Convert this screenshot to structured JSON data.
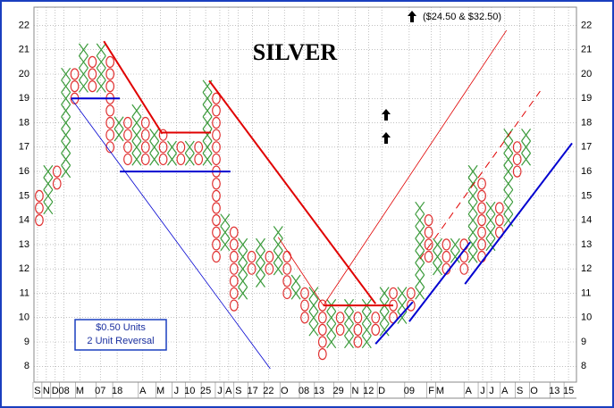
{
  "chart_data": {
    "type": "point_and_figure",
    "title": "SILVER",
    "annotation": "($24.50 & $32.50)",
    "box_size": 0.5,
    "box_label": "$0.50 Units",
    "reversal_label": "2 Unit Reversal",
    "x_color": "#3a9a3a",
    "o_color": "#e03030",
    "grid": true,
    "ylim": [
      7.35,
      22.75
    ],
    "yticks": [
      8,
      9,
      10,
      11,
      12,
      13,
      14,
      15,
      16,
      17,
      18,
      19,
      20,
      21,
      22
    ],
    "xlim": [
      -0.6,
      60.7
    ],
    "xticks": [
      {
        "value": -0.2,
        "label": "S"
      },
      {
        "value": 0.8,
        "label": "N"
      },
      {
        "value": 1.8,
        "label": "D"
      },
      {
        "value": 2.8,
        "label": "08"
      },
      {
        "value": 4.6,
        "label": "M"
      },
      {
        "value": 6.9,
        "label": "07"
      },
      {
        "value": 8.8,
        "label": "18"
      },
      {
        "value": 11.7,
        "label": "A"
      },
      {
        "value": 13.7,
        "label": "M"
      },
      {
        "value": 15.5,
        "label": "J"
      },
      {
        "value": 17,
        "label": "10"
      },
      {
        "value": 18.8,
        "label": "25"
      },
      {
        "value": 20.4,
        "label": "J"
      },
      {
        "value": 21.4,
        "label": "A"
      },
      {
        "value": 22.5,
        "label": "S"
      },
      {
        "value": 24.1,
        "label": "17"
      },
      {
        "value": 25.9,
        "label": "22"
      },
      {
        "value": 27.7,
        "label": "O"
      },
      {
        "value": 29.9,
        "label": "08"
      },
      {
        "value": 31.6,
        "label": "13"
      },
      {
        "value": 33.8,
        "label": "29"
      },
      {
        "value": 35.7,
        "label": "N"
      },
      {
        "value": 37.2,
        "label": "12"
      },
      {
        "value": 38.7,
        "label": "D"
      },
      {
        "value": 41.8,
        "label": "09"
      },
      {
        "value": 44.3,
        "label": "F"
      },
      {
        "value": 45.3,
        "label": "M"
      },
      {
        "value": 48.5,
        "label": "A"
      },
      {
        "value": 50.1,
        "label": "J"
      },
      {
        "value": 51.1,
        "label": "J"
      },
      {
        "value": 52.6,
        "label": "A"
      },
      {
        "value": 54.3,
        "label": "S"
      },
      {
        "value": 55.9,
        "label": "O"
      },
      {
        "value": 58.2,
        "label": "13"
      },
      {
        "value": 59.8,
        "label": "15"
      }
    ],
    "columns": [
      {
        "kind": "O",
        "low": 14,
        "high": 15
      },
      {
        "kind": "X",
        "low": 14.5,
        "high": 16
      },
      {
        "kind": "O",
        "low": 15.5,
        "high": 16
      },
      {
        "kind": "X",
        "low": 16,
        "high": 20
      },
      {
        "kind": "O",
        "low": 19,
        "high": 20
      },
      {
        "kind": "X",
        "low": 19.5,
        "high": 21
      },
      {
        "kind": "O",
        "low": 19.5,
        "high": 20.5
      },
      {
        "kind": "X",
        "low": 19.5,
        "high": 21
      },
      {
        "kind": "O",
        "low": 17,
        "high": 20.5
      },
      {
        "kind": "X",
        "low": 17.5,
        "high": 18
      },
      {
        "kind": "O",
        "low": 16.5,
        "high": 18
      },
      {
        "kind": "X",
        "low": 16.5,
        "high": 18.5
      },
      {
        "kind": "O",
        "low": 16.5,
        "high": 18
      },
      {
        "kind": "X",
        "low": 16.5,
        "high": 17.5
      },
      {
        "kind": "O",
        "low": 16.5,
        "high": 17.5
      },
      {
        "kind": "X",
        "low": 16.5,
        "high": 17
      },
      {
        "kind": "O",
        "low": 16.5,
        "high": 17
      },
      {
        "kind": "X",
        "low": 16.5,
        "high": 17
      },
      {
        "kind": "O",
        "low": 16.5,
        "high": 17
      },
      {
        "kind": "X",
        "low": 16.5,
        "high": 19.5
      },
      {
        "kind": "O",
        "low": 12.5,
        "high": 19
      },
      {
        "kind": "X",
        "low": 13,
        "high": 14
      },
      {
        "kind": "O",
        "low": 10.5,
        "high": 13.5
      },
      {
        "kind": "X",
        "low": 11,
        "high": 13
      },
      {
        "kind": "O",
        "low": 12,
        "high": 12.5
      },
      {
        "kind": "X",
        "low": 11.5,
        "high": 13
      },
      {
        "kind": "O",
        "low": 12,
        "high": 12.5
      },
      {
        "kind": "X",
        "low": 12,
        "high": 13.5
      },
      {
        "kind": "O",
        "low": 11,
        "high": 12.5
      },
      {
        "kind": "X",
        "low": 11,
        "high": 11.5
      },
      {
        "kind": "O",
        "low": 10,
        "high": 11
      },
      {
        "kind": "X",
        "low": 9.5,
        "high": 11
      },
      {
        "kind": "O",
        "low": 8.5,
        "high": 10.5
      },
      {
        "kind": "X",
        "low": 9,
        "high": 10.5
      },
      {
        "kind": "O",
        "low": 9.5,
        "high": 10
      },
      {
        "kind": "X",
        "low": 9,
        "high": 10.5
      },
      {
        "kind": "O",
        "low": 9,
        "high": 10
      },
      {
        "kind": "X",
        "low": 9,
        "high": 10.5
      },
      {
        "kind": "O",
        "low": 9.5,
        "high": 10
      },
      {
        "kind": "X",
        "low": 9.5,
        "high": 11
      },
      {
        "kind": "O",
        "low": 10,
        "high": 11
      },
      {
        "kind": "X",
        "low": 10,
        "high": 11
      },
      {
        "kind": "O",
        "low": 10.5,
        "high": 11
      },
      {
        "kind": "X",
        "low": 11,
        "high": 14.5
      },
      {
        "kind": "O",
        "low": 12.5,
        "high": 14
      },
      {
        "kind": "X",
        "low": 12,
        "high": 13
      },
      {
        "kind": "O",
        "low": 12,
        "high": 13
      },
      {
        "kind": "X",
        "low": 12.5,
        "high": 13
      },
      {
        "kind": "O",
        "low": 12,
        "high": 13
      },
      {
        "kind": "X",
        "low": 12.5,
        "high": 16
      },
      {
        "kind": "O",
        "low": 12.5,
        "high": 15.5
      },
      {
        "kind": "X",
        "low": 13,
        "high": 14.5
      },
      {
        "kind": "O",
        "low": 13.5,
        "high": 14.5
      },
      {
        "kind": "X",
        "low": 14,
        "high": 17.5
      },
      {
        "kind": "O",
        "low": 16,
        "high": 17
      },
      {
        "kind": "X",
        "low": 16.5,
        "high": 17.5
      }
    ],
    "trendlines": [
      {
        "color": "#e00000",
        "width": 2,
        "dash": false,
        "x": [
          7.3,
          13.9
        ],
        "y": [
          21.35,
          17.55
        ]
      },
      {
        "color": "#e00000",
        "width": 2,
        "dash": false,
        "x": [
          13.9,
          19.4
        ],
        "y": [
          17.6,
          17.6
        ]
      },
      {
        "color": "#0000d0",
        "width": 2,
        "dash": false,
        "x": [
          3.6,
          9.1
        ],
        "y": [
          19,
          19
        ]
      },
      {
        "color": "#0000d0",
        "width": 0.8,
        "dash": false,
        "x": [
          3.6,
          26.1
        ],
        "y": [
          19,
          7.9
        ]
      },
      {
        "color": "#0000d0",
        "width": 2,
        "dash": false,
        "x": [
          9.1,
          21.6
        ],
        "y": [
          16,
          16
        ]
      },
      {
        "color": "#e00000",
        "width": 2,
        "dash": false,
        "x": [
          19.2,
          38
        ],
        "y": [
          19.73,
          10.57
        ]
      },
      {
        "color": "#e00000",
        "width": 2,
        "dash": false,
        "x": [
          32.1,
          40
        ],
        "y": [
          10.5,
          10.5
        ]
      },
      {
        "color": "#e00000",
        "width": 0.8,
        "dash": false,
        "x": [
          27,
          32.1
        ],
        "y": [
          13.3,
          10.5
        ]
      },
      {
        "color": "#e00000",
        "width": 0.8,
        "dash": false,
        "x": [
          32.1,
          52.8
        ],
        "y": [
          10.5,
          21.8
        ]
      },
      {
        "color": "#e00000",
        "width": 1,
        "dash": true,
        "x": [
          43,
          56.6
        ],
        "y": [
          12.4,
          19.3
        ]
      },
      {
        "color": "#0000d0",
        "width": 2,
        "dash": false,
        "x": [
          38,
          42.2
        ],
        "y": [
          8.92,
          10.64
        ]
      },
      {
        "color": "#0000d0",
        "width": 2,
        "dash": false,
        "x": [
          41.8,
          48.7
        ],
        "y": [
          9.84,
          13.1
        ]
      },
      {
        "color": "#0000d0",
        "width": 2,
        "dash": false,
        "x": [
          48.1,
          60.2
        ],
        "y": [
          11.38,
          17.16
        ]
      }
    ]
  }
}
